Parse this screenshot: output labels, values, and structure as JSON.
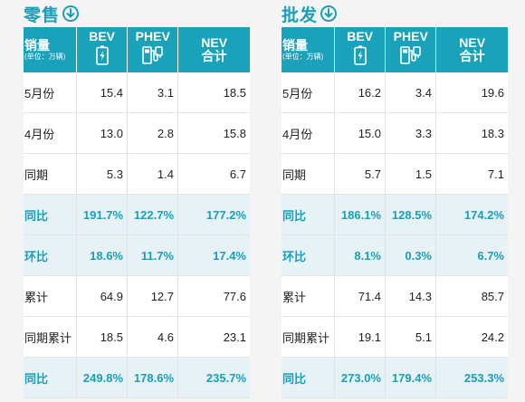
{
  "colors": {
    "accent": "#1ba2bb",
    "accent_text": "#1a9fb8",
    "highlight_row": "#e6f2f6"
  },
  "header": {
    "metric_label": "销量",
    "metric_unit": "(单位：万辆)",
    "bev": "BEV",
    "phev": "PHEV",
    "nev_line1": "NEV",
    "nev_line2": "合计"
  },
  "icons": {
    "title": "arrow-down-circle-icon",
    "bev": "battery-charge-icon",
    "phev": "fuel-pump-plug-icon"
  },
  "retail": {
    "title": "零售",
    "rows": [
      {
        "label": "5月份",
        "bev": "15.4",
        "phev": "3.1",
        "nev": "18.5",
        "highlight": false
      },
      {
        "label": "4月份",
        "bev": "13.0",
        "phev": "2.8",
        "nev": "15.8",
        "highlight": false
      },
      {
        "label": "同期",
        "bev": "5.3",
        "phev": "1.4",
        "nev": "6.7",
        "highlight": false
      },
      {
        "label": "同比",
        "bev": "191.7%",
        "phev": "122.7%",
        "nev": "177.2%",
        "highlight": true
      },
      {
        "label": "环比",
        "bev": "18.6%",
        "phev": "11.7%",
        "nev": "17.4%",
        "highlight": true
      },
      {
        "label": "累计",
        "bev": "64.9",
        "phev": "12.7",
        "nev": "77.6",
        "highlight": false
      },
      {
        "label": "同期累计",
        "bev": "18.5",
        "phev": "4.6",
        "nev": "23.1",
        "highlight": false
      },
      {
        "label": "同比",
        "bev": "249.8%",
        "phev": "178.6%",
        "nev": "235.7%",
        "highlight": true
      }
    ]
  },
  "wholesale": {
    "title": "批发",
    "rows": [
      {
        "label": "5月份",
        "bev": "16.2",
        "phev": "3.4",
        "nev": "19.6",
        "highlight": false
      },
      {
        "label": "4月份",
        "bev": "15.0",
        "phev": "3.3",
        "nev": "18.3",
        "highlight": false
      },
      {
        "label": "同期",
        "bev": "5.7",
        "phev": "1.5",
        "nev": "7.1",
        "highlight": false
      },
      {
        "label": "同比",
        "bev": "186.1%",
        "phev": "128.5%",
        "nev": "174.2%",
        "highlight": true
      },
      {
        "label": "环比",
        "bev": "8.1%",
        "phev": "0.3%",
        "nev": "6.7%",
        "highlight": true
      },
      {
        "label": "累计",
        "bev": "71.4",
        "phev": "14.3",
        "nev": "85.7",
        "highlight": false
      },
      {
        "label": "同期累计",
        "bev": "19.1",
        "phev": "5.1",
        "nev": "24.2",
        "highlight": false
      },
      {
        "label": "同比",
        "bev": "273.0%",
        "phev": "179.4%",
        "nev": "253.3%",
        "highlight": true
      }
    ]
  }
}
